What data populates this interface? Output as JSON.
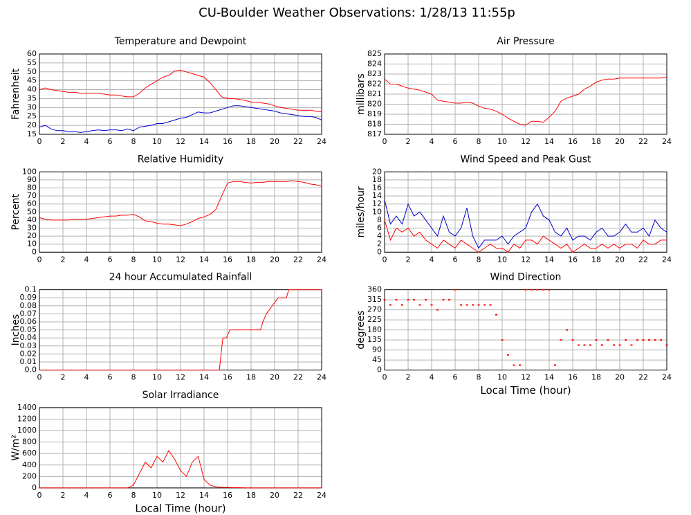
{
  "title": "CU-Boulder Weather Observations: 1/28/13 11:55p",
  "chart_data": [
    {
      "type": "line",
      "title": "Temperature and Dewpoint",
      "ylabel": "Fahrenheit",
      "grid": true,
      "xlim": [
        0,
        24
      ],
      "xticks": [
        0,
        2,
        4,
        6,
        8,
        10,
        12,
        14,
        16,
        18,
        20,
        22,
        24
      ],
      "ylim": [
        15,
        60
      ],
      "yticks": [
        15,
        20,
        25,
        30,
        35,
        40,
        45,
        50,
        55,
        60
      ],
      "x": [
        0,
        0.5,
        1,
        1.5,
        2,
        2.5,
        3,
        3.5,
        4,
        4.5,
        5,
        5.5,
        6,
        6.5,
        7,
        7.5,
        8,
        8.5,
        9,
        9.5,
        10,
        10.5,
        11,
        11.5,
        12,
        12.5,
        13,
        13.5,
        14,
        14.5,
        15,
        15.5,
        16,
        16.5,
        17,
        17.5,
        18,
        18.5,
        19,
        19.5,
        20,
        20.5,
        21,
        21.5,
        22,
        22.5,
        23,
        23.5,
        24
      ],
      "series": [
        {
          "color": "#ff0000",
          "values": [
            40,
            41,
            40,
            39.5,
            39,
            38.5,
            38.5,
            38,
            38,
            38,
            38,
            37.5,
            37,
            37,
            36.5,
            36,
            36,
            38,
            41,
            43,
            45,
            47,
            48,
            50.5,
            51,
            50,
            49,
            48,
            47,
            44,
            40,
            36,
            35,
            35,
            34.5,
            34,
            33,
            33,
            32.5,
            32,
            31,
            30,
            29.5,
            29,
            28.5,
            28.5,
            28.5,
            28,
            27.5
          ]
        },
        {
          "color": "#0000cc",
          "values": [
            19,
            20,
            18,
            17,
            17,
            16.5,
            16.5,
            16,
            16.5,
            17,
            17.5,
            17,
            17.5,
            17.5,
            17,
            18,
            17,
            19,
            19.5,
            20,
            21,
            21,
            22,
            23,
            24,
            24.5,
            26,
            27.5,
            27,
            27,
            28,
            29,
            30,
            31,
            31,
            30.5,
            30,
            29.5,
            29,
            28.5,
            28,
            27,
            26.5,
            26,
            25.5,
            25,
            25,
            24.5,
            23
          ]
        }
      ]
    },
    {
      "type": "line",
      "title": "Air Pressure",
      "ylabel": "millibars",
      "grid": true,
      "xlim": [
        0,
        24
      ],
      "xticks": [
        0,
        2,
        4,
        6,
        8,
        10,
        12,
        14,
        16,
        18,
        20,
        22,
        24
      ],
      "ylim": [
        817,
        825
      ],
      "yticks": [
        817,
        818,
        819,
        820,
        821,
        822,
        823,
        824,
        825
      ],
      "x": [
        0,
        0.5,
        1,
        1.5,
        2,
        2.5,
        3,
        3.5,
        4,
        4.5,
        5,
        5.5,
        6,
        6.5,
        7,
        7.5,
        8,
        8.5,
        9,
        9.5,
        10,
        10.5,
        11,
        11.5,
        12,
        12.5,
        13,
        13.5,
        14,
        14.5,
        15,
        15.5,
        16,
        16.5,
        17,
        17.5,
        18,
        18.5,
        19,
        19.5,
        20,
        20.5,
        21,
        21.5,
        22,
        22.5,
        23,
        23.5,
        24
      ],
      "series": [
        {
          "color": "#ff0000",
          "values": [
            822.5,
            822,
            822,
            821.8,
            821.6,
            821.5,
            821.4,
            821.2,
            821,
            820.4,
            820.3,
            820.2,
            820.1,
            820.1,
            820.2,
            820.1,
            819.8,
            819.6,
            819.5,
            819.3,
            819,
            818.6,
            818.3,
            818,
            817.9,
            818.3,
            818.3,
            818.2,
            818.7,
            819.3,
            820.3,
            820.6,
            820.8,
            821,
            821.5,
            821.8,
            822.2,
            822.4,
            822.5,
            822.5,
            822.6,
            822.6,
            822.6,
            822.6,
            822.6,
            822.6,
            822.6,
            822.6,
            822.7
          ]
        }
      ]
    },
    {
      "type": "line",
      "title": "Relative Humidity",
      "ylabel": "Percent",
      "grid": true,
      "xlim": [
        0,
        24
      ],
      "xticks": [
        0,
        2,
        4,
        6,
        8,
        10,
        12,
        14,
        16,
        18,
        20,
        22,
        24
      ],
      "ylim": [
        0,
        100
      ],
      "yticks": [
        0,
        10,
        20,
        30,
        40,
        50,
        60,
        70,
        80,
        90,
        100
      ],
      "x": [
        0,
        0.5,
        1,
        1.5,
        2,
        2.5,
        3,
        3.5,
        4,
        4.5,
        5,
        5.5,
        6,
        6.5,
        7,
        7.5,
        8,
        8.5,
        9,
        9.5,
        10,
        10.5,
        11,
        11.5,
        12,
        12.5,
        13,
        13.5,
        14,
        14.5,
        15,
        15.5,
        16,
        16.5,
        17,
        17.5,
        18,
        18.5,
        19,
        19.5,
        20,
        20.5,
        21,
        21.5,
        22,
        22.5,
        23,
        23.5,
        24
      ],
      "series": [
        {
          "color": "#ff0000",
          "values": [
            43,
            41,
            40,
            40,
            40,
            40,
            41,
            41,
            41,
            42,
            43,
            44,
            45,
            45,
            46,
            46,
            47,
            44,
            39,
            38,
            36,
            35,
            35,
            34,
            33,
            35,
            38,
            42,
            44,
            47,
            53,
            70,
            86,
            88,
            88,
            87,
            86,
            87,
            87,
            88,
            88,
            88,
            88,
            89,
            88,
            87,
            85,
            84,
            82
          ]
        }
      ]
    },
    {
      "type": "line",
      "title": "Wind Speed and Peak Gust",
      "ylabel": "miles/hour",
      "grid": true,
      "xlim": [
        0,
        24
      ],
      "xticks": [
        0,
        2,
        4,
        6,
        8,
        10,
        12,
        14,
        16,
        18,
        20,
        22,
        24
      ],
      "ylim": [
        0,
        20
      ],
      "yticks": [
        0,
        2,
        4,
        6,
        8,
        10,
        12,
        14,
        16,
        18,
        20
      ],
      "x": [
        0,
        0.5,
        1,
        1.5,
        2,
        2.5,
        3,
        3.5,
        4,
        4.5,
        5,
        5.5,
        6,
        6.5,
        7,
        7.5,
        8,
        8.5,
        9,
        9.5,
        10,
        10.5,
        11,
        11.5,
        12,
        12.5,
        13,
        13.5,
        14,
        14.5,
        15,
        15.5,
        16,
        16.5,
        17,
        17.5,
        18,
        18.5,
        19,
        19.5,
        20,
        20.5,
        21,
        21.5,
        22,
        22.5,
        23,
        23.5,
        24
      ],
      "series": [
        {
          "color": "#ff0000",
          "values": [
            8,
            3,
            6,
            5,
            6,
            4,
            5,
            3,
            2,
            1,
            3,
            2,
            1,
            3,
            2,
            1,
            0,
            1,
            2,
            1,
            1,
            0,
            2,
            1,
            3,
            3,
            2,
            4,
            3,
            2,
            1,
            2,
            0,
            1,
            2,
            1,
            1,
            2,
            1,
            2,
            1,
            2,
            2,
            1,
            3,
            2,
            2,
            3,
            3
          ]
        },
        {
          "color": "#0000cc",
          "values": [
            13,
            7,
            9,
            7,
            12,
            9,
            10,
            8,
            6,
            4,
            9,
            5,
            4,
            6,
            11,
            4,
            1,
            3,
            3,
            3,
            4,
            2,
            4,
            5,
            6,
            10,
            12,
            9,
            8,
            5,
            4,
            6,
            3,
            4,
            4,
            3,
            5,
            6,
            4,
            4,
            5,
            7,
            5,
            5,
            6,
            4,
            8,
            6,
            5
          ]
        }
      ]
    },
    {
      "type": "line",
      "title": "24 hour Accumulated Rainfall",
      "ylabel": "Inches",
      "grid": true,
      "xlim": [
        0,
        24
      ],
      "xticks": [
        0,
        2,
        4,
        6,
        8,
        10,
        12,
        14,
        16,
        18,
        20,
        22,
        24
      ],
      "ylim": [
        0,
        0.1
      ],
      "yticks": [
        {
          "value": 0,
          "label": "0.0"
        },
        0.01,
        0.02,
        0.03,
        0.04,
        0.05,
        0.06,
        0.07,
        0.08,
        0.09,
        0.1
      ],
      "x": [
        0,
        15.3,
        15.6,
        15.9,
        16.2,
        18.8,
        19,
        19.3,
        19.8,
        20.3,
        21,
        21.2,
        24
      ],
      "series": [
        {
          "color": "#ff0000",
          "values": [
            0,
            0,
            0.04,
            0.04,
            0.05,
            0.05,
            0.06,
            0.07,
            0.08,
            0.09,
            0.09,
            0.1,
            0.1
          ]
        }
      ]
    },
    {
      "type": "scatter",
      "title": "Wind Direction",
      "ylabel": "degrees",
      "xlabel": "Local Time (hour)",
      "grid": true,
      "xlim": [
        0,
        24
      ],
      "xticks": [
        0,
        2,
        4,
        6,
        8,
        10,
        12,
        14,
        16,
        18,
        20,
        22,
        24
      ],
      "ylim": [
        0,
        360
      ],
      "yticks": [
        0,
        45,
        90,
        135,
        180,
        225,
        270,
        315,
        360
      ],
      "x": [
        0,
        0.5,
        1,
        1.5,
        2,
        2.5,
        3,
        3.5,
        4,
        4.5,
        5,
        5.5,
        6,
        6.5,
        7,
        7.5,
        8,
        8.5,
        9,
        9.5,
        10,
        10.5,
        11,
        11.5,
        12,
        12.5,
        13,
        13.5,
        14,
        14.5,
        15,
        15.5,
        16,
        16.5,
        17,
        17.5,
        18,
        18.5,
        19,
        19.5,
        20,
        20.5,
        21,
        21.5,
        22,
        22.5,
        23,
        23.5,
        24
      ],
      "series": [
        {
          "color": "#ff0000",
          "values": [
            315,
            292,
            315,
            292,
            315,
            315,
            292,
            315,
            292,
            270,
            315,
            315,
            360,
            292,
            292,
            292,
            292,
            292,
            292,
            248,
            135,
            68,
            22,
            22,
            360,
            360,
            360,
            360,
            360,
            22,
            135,
            180,
            135,
            112,
            112,
            112,
            135,
            112,
            135,
            112,
            112,
            135,
            112,
            135,
            135,
            135,
            135,
            135,
            112
          ]
        }
      ]
    },
    {
      "type": "line",
      "title": "Solar Irradiance",
      "ylabel": "W/m²",
      "xlabel": "Local Time (hour)",
      "grid": true,
      "xlim": [
        0,
        24
      ],
      "xticks": [
        0,
        2,
        4,
        6,
        8,
        10,
        12,
        14,
        16,
        18,
        20,
        22,
        24
      ],
      "ylim": [
        0,
        1400
      ],
      "yticks": [
        0,
        200,
        400,
        600,
        800,
        1000,
        1200,
        1400
      ],
      "x": [
        0,
        0.5,
        1,
        1.5,
        2,
        2.5,
        3,
        3.5,
        4,
        4.5,
        5,
        5.5,
        6,
        6.5,
        7,
        7.5,
        8,
        8.5,
        9,
        9.5,
        10,
        10.5,
        11,
        11.5,
        12,
        12.5,
        13,
        13.5,
        14,
        14.5,
        15,
        15.5,
        16,
        16.5,
        17,
        17.5,
        18,
        18.5,
        19,
        19.5,
        20,
        20.5,
        21,
        21.5,
        22,
        22.5,
        23,
        23.5,
        24
      ],
      "series": [
        {
          "color": "#ff0000",
          "values": [
            0,
            0,
            0,
            0,
            0,
            0,
            0,
            0,
            0,
            0,
            0,
            0,
            0,
            0,
            0,
            0,
            50,
            250,
            450,
            350,
            550,
            450,
            650,
            500,
            300,
            200,
            450,
            550,
            150,
            50,
            20,
            10,
            10,
            5,
            5,
            0,
            0,
            0,
            0,
            0,
            0,
            0,
            0,
            0,
            0,
            0,
            0,
            0,
            0
          ]
        }
      ]
    }
  ]
}
